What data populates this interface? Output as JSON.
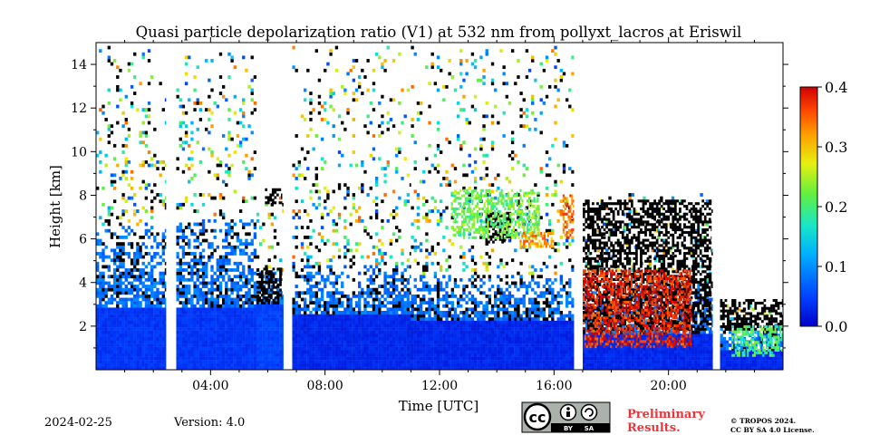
{
  "chart_data": {
    "type": "heatmap",
    "title": "Quasi particle depolarization ratio (V1) at 532 nm from pollyxt_lacros at Eriswil",
    "xlabel": "Time [UTC]",
    "ylabel": "Height [km]",
    "xlim_hours": [
      0,
      24
    ],
    "ylim": [
      0,
      15
    ],
    "x_ticks": [
      {
        "t": 4,
        "label": "04:00"
      },
      {
        "t": 8,
        "label": "08:00"
      },
      {
        "t": 12,
        "label": "12:00"
      },
      {
        "t": 16,
        "label": "16:00"
      },
      {
        "t": 20,
        "label": "20:00"
      }
    ],
    "y_ticks": [
      {
        "v": 2,
        "label": "2"
      },
      {
        "v": 4,
        "label": "4"
      },
      {
        "v": 6,
        "label": "6"
      },
      {
        "v": 8,
        "label": "8"
      },
      {
        "v": 10,
        "label": "10"
      },
      {
        "v": 12,
        "label": "12"
      },
      {
        "v": 14,
        "label": "14"
      }
    ],
    "colorbar": {
      "min": 0.0,
      "max": 0.4,
      "colormap": "jet",
      "ticks": [
        {
          "v": 0.0,
          "label": "0.0"
        },
        {
          "v": 0.1,
          "label": "0.1"
        },
        {
          "v": 0.2,
          "label": "0.2"
        },
        {
          "v": 0.3,
          "label": "0.3"
        },
        {
          "v": 0.4,
          "label": "0.4"
        }
      ]
    },
    "no_data_gaps_hours": [
      [
        2.45,
        2.8
      ],
      [
        6.55,
        6.85
      ],
      [
        16.7,
        17.0
      ],
      [
        21.55,
        21.8
      ]
    ],
    "regimes": [
      {
        "t0": 0.0,
        "t1": 2.45,
        "low_top": 2.8,
        "low_value": 0.04,
        "mid_top": 6.5,
        "sparse_top": 14.8
      },
      {
        "t0": 2.8,
        "t1": 5.6,
        "low_top": 2.8,
        "low_value": 0.04,
        "mid_top": 6.8,
        "sparse_top": 14.5
      },
      {
        "t0": 5.6,
        "t1": 6.55,
        "low_top": 2.9,
        "low_value": 0.05,
        "mid_top": 4.5,
        "sparse_top": 8.2
      },
      {
        "t0": 6.85,
        "t1": 11.0,
        "low_top": 2.5,
        "low_value": 0.03,
        "mid_top": 4.8,
        "sparse_top": 14.8
      },
      {
        "t0": 11.0,
        "t1": 16.7,
        "low_top": 2.2,
        "low_value": 0.03,
        "mid_top": 4.2,
        "sparse_top": 14.8
      },
      {
        "t0": 17.0,
        "t1": 21.55,
        "low_top": 1.6,
        "low_value": 0.03,
        "mid_top": 4.0,
        "sparse_top": 8.0
      },
      {
        "t0": 21.8,
        "t1": 24.0,
        "low_top": 0.8,
        "low_value": 0.03,
        "mid_top": 2.0,
        "sparse_top": 3.0
      }
    ],
    "features": [
      {
        "kind": "cloud_black",
        "t0": 13.6,
        "t1": 14.5,
        "h0": 5.8,
        "h1": 7.2
      },
      {
        "kind": "cloud_black",
        "t0": 17.0,
        "t1": 21.5,
        "h0": 1.8,
        "h1": 7.8
      },
      {
        "kind": "cloud_black",
        "t0": 21.8,
        "t1": 24.0,
        "h0": 1.8,
        "h1": 3.2
      },
      {
        "kind": "cloud_black",
        "t0": 5.9,
        "t1": 6.5,
        "h0": 7.6,
        "h1": 8.3
      },
      {
        "kind": "cloud_black",
        "t0": 5.6,
        "t1": 6.5,
        "h0": 3.0,
        "h1": 4.6
      },
      {
        "kind": "high_dep",
        "t0": 12.4,
        "t1": 15.5,
        "h0": 6.0,
        "h1": 8.2,
        "value": 0.22
      },
      {
        "kind": "high_dep",
        "t0": 14.8,
        "t1": 16.0,
        "h0": 5.6,
        "h1": 6.3,
        "value": 0.32
      },
      {
        "kind": "high_dep",
        "t0": 16.3,
        "t1": 16.7,
        "h0": 6.0,
        "h1": 8.0,
        "value": 0.34
      },
      {
        "kind": "high_dep",
        "t0": 17.0,
        "t1": 20.8,
        "h0": 1.0,
        "h1": 4.6,
        "value": 0.38
      },
      {
        "kind": "high_dep",
        "t0": 22.2,
        "t1": 24.0,
        "h0": 0.6,
        "h1": 2.0,
        "value": 0.2
      }
    ]
  },
  "footer": {
    "date": "2024-02-25",
    "version": "Version: 4.0",
    "preliminary": "Preliminary\nResults.",
    "copyright_line1": "© TROPOS 2024.",
    "copyright_line2": "CC BY SA 4.0 License.",
    "license_badge": {
      "cc": "cc",
      "by": "BY",
      "sa": "SA"
    }
  },
  "colors": {
    "preliminary": "#e8363a",
    "cloud": "#000000",
    "badge_bg": "#aab2ab",
    "badge_dark": "#000000"
  }
}
